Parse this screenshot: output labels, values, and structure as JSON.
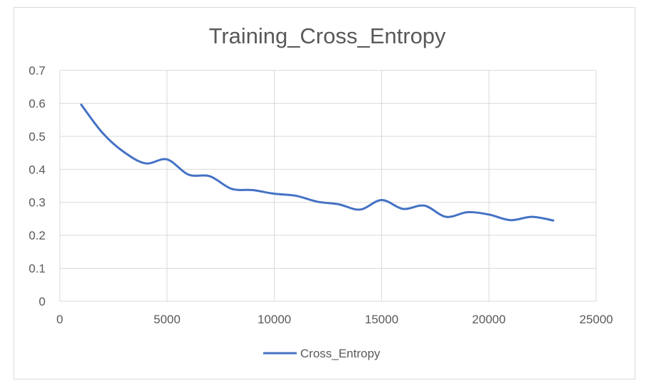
{
  "chart_data": {
    "type": "line",
    "title": "Training_Cross_Entropy",
    "xlabel": "",
    "ylabel": "",
    "xlim": [
      0,
      25000
    ],
    "ylim": [
      0,
      0.7
    ],
    "x_ticks": [
      "0",
      "5000",
      "10000",
      "15000",
      "20000",
      "25000"
    ],
    "y_ticks": [
      "0",
      "0.1",
      "0.2",
      "0.3",
      "0.4",
      "0.5",
      "0.6",
      "0.7"
    ],
    "grid": true,
    "legend_position": "bottom",
    "series": [
      {
        "name": "Cross_Entropy",
        "color": "#4472c4",
        "x": [
          1000,
          2000,
          3000,
          4000,
          5000,
          6000,
          7000,
          8000,
          9000,
          10000,
          11000,
          12000,
          13000,
          14000,
          15000,
          16000,
          17000,
          18000,
          19000,
          20000,
          21000,
          22000,
          23000
        ],
        "y": [
          0.596,
          0.51,
          0.452,
          0.418,
          0.43,
          0.384,
          0.379,
          0.341,
          0.337,
          0.326,
          0.32,
          0.302,
          0.294,
          0.278,
          0.307,
          0.28,
          0.29,
          0.256,
          0.27,
          0.263,
          0.246,
          0.256,
          0.245
        ]
      }
    ]
  }
}
